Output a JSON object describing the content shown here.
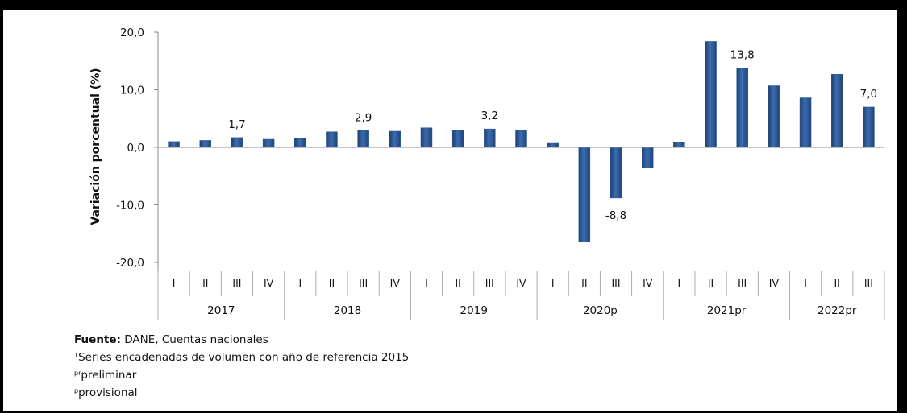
{
  "chart_data": {
    "type": "bar",
    "ylabel": "Variación porcentual (%)",
    "ylim": [
      -20,
      20
    ],
    "yticks": [
      "20,0",
      "10,0",
      "0,0",
      "-10,0",
      "-20,0"
    ],
    "bar_color": "#2e5c9a",
    "years": [
      {
        "label": "2017",
        "quarters": [
          "I",
          "II",
          "III",
          "IV"
        ]
      },
      {
        "label": "2018",
        "quarters": [
          "I",
          "II",
          "III",
          "IV"
        ]
      },
      {
        "label": "2019",
        "quarters": [
          "I",
          "II",
          "III",
          "IV"
        ]
      },
      {
        "label": "2020p",
        "quarters": [
          "I",
          "II",
          "III",
          "IV"
        ]
      },
      {
        "label": "2021pr",
        "quarters": [
          "I",
          "II",
          "III",
          "IV"
        ]
      },
      {
        "label": "2022pr",
        "quarters": [
          "I",
          "II",
          "III"
        ]
      }
    ],
    "values": [
      1.0,
      1.2,
      1.7,
      1.4,
      1.6,
      2.7,
      2.9,
      2.8,
      3.4,
      2.9,
      3.2,
      2.9,
      0.7,
      -16.4,
      -8.8,
      -3.6,
      0.9,
      18.4,
      13.8,
      10.7,
      8.6,
      12.7,
      7.0
    ],
    "data_labels": [
      {
        "index": 2,
        "text": "1,7"
      },
      {
        "index": 6,
        "text": "2,9"
      },
      {
        "index": 10,
        "text": "3,2"
      },
      {
        "index": 14,
        "text": "-8,8"
      },
      {
        "index": 18,
        "text": "13,8"
      },
      {
        "index": 22,
        "text": "7,0"
      }
    ]
  },
  "footnotes": {
    "source_label": "Fuente:",
    "source_text": " DANE, Cuentas nacionales",
    "note1_mark": "1",
    "note1_text": "Series encadenadas de volumen con año de referencia 2015",
    "note2_mark": "pr",
    "note2_text": "preliminar",
    "note3_mark": "p",
    "note3_text": "provisional"
  }
}
